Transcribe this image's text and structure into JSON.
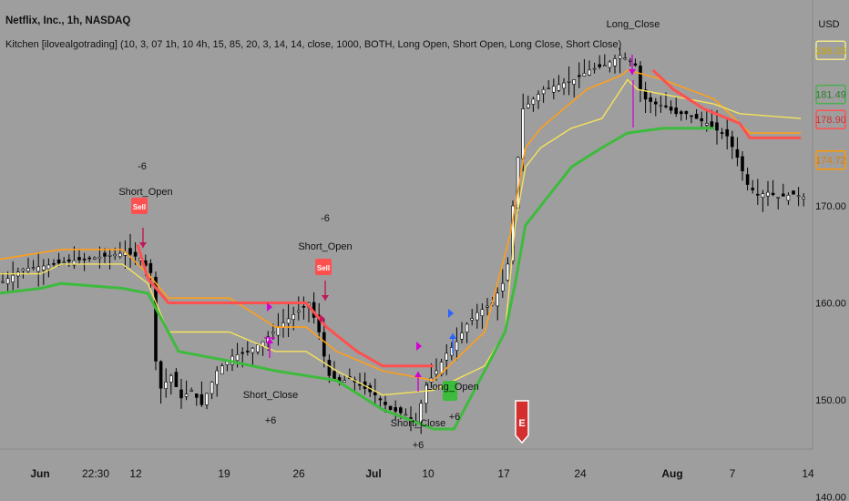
{
  "header": {
    "title": "Netflix, Inc., 1h, NASDAQ",
    "indicator": "Kitchen [ilovealgotrading] (10, 3, 07 1h, 10 4h, 15, 85, 20, 3, 14, 14, close, 1000, BOTH, Long Open, Short Open, Long Close, Short Close)"
  },
  "price_axis": {
    "currency": "USD",
    "ticks": [
      "170.00",
      "160.00",
      "150.00",
      "140.00"
    ],
    "badges": [
      {
        "value": "186.03",
        "color": "#f0e68c",
        "text_color": "#c9a800"
      },
      {
        "value": "181.49",
        "color": "#4caf50",
        "text_color": "#2e7d32"
      },
      {
        "value": "178.90",
        "color": "#ff5252",
        "text_color": "#d32f2f"
      },
      {
        "value": "174.72",
        "color": "#ff9800",
        "text_color": "#e07b00"
      }
    ]
  },
  "time_axis": {
    "ticks": [
      "Jun",
      "22:30",
      "12",
      "19",
      "26",
      "Jul",
      "10",
      "17",
      "24",
      "Aug",
      "7",
      "14"
    ],
    "bold_ticks": [
      "Jun",
      "Jul",
      "Aug"
    ]
  },
  "annotations": [
    {
      "label": "Short_Open",
      "qty": "-6",
      "type": "short_open"
    },
    {
      "label": "Short_Open",
      "qty": "-6",
      "type": "short_open"
    },
    {
      "label": "Short_Close",
      "qty": "+6",
      "type": "short_close"
    },
    {
      "label": "Short_Close",
      "qty": "+6",
      "type": "short_close"
    },
    {
      "label": "Long_Open",
      "qty": "+6",
      "type": "long_open"
    },
    {
      "label": "Long_Close",
      "qty": "",
      "type": "long_close"
    }
  ],
  "sell_badge_text": "Sell",
  "earnings_marker": "E",
  "colors": {
    "background": "#9e9e9e",
    "yellow": "#f5e35a",
    "orange": "#ff9f1a",
    "green": "#3dbb3d",
    "red": "#ff5050",
    "magenta": "#d400d4",
    "blue": "#2962ff",
    "candle": "#000000",
    "candle_up": "#ffffff"
  },
  "chart_data": {
    "type": "line",
    "title": "Netflix, Inc., 1h, NASDAQ",
    "ylabel": "USD",
    "ylim": [
      135,
      195
    ],
    "x_ticks": [
      "Jun",
      "22:30",
      "12",
      "19",
      "26",
      "Jul",
      "10",
      "17",
      "24",
      "Aug",
      "7",
      "14"
    ],
    "series": [
      {
        "name": "close",
        "points": [
          [
            0,
            162.2
          ],
          [
            4,
            163.5
          ],
          [
            8,
            163.8
          ],
          [
            12,
            164.2
          ],
          [
            16,
            164.5
          ],
          [
            20,
            164.8
          ],
          [
            24,
            165.2
          ],
          [
            27,
            164.6
          ],
          [
            29,
            163.1
          ],
          [
            29.5,
            159
          ],
          [
            30,
            154
          ],
          [
            30.5,
            150.5
          ],
          [
            31,
            151.2
          ],
          [
            33,
            152.5
          ],
          [
            35,
            150.2
          ],
          [
            37,
            151
          ],
          [
            39,
            149.5
          ],
          [
            42,
            153
          ],
          [
            45,
            154.5
          ],
          [
            48,
            155
          ],
          [
            51,
            156
          ],
          [
            54,
            157.5
          ],
          [
            57,
            158.8
          ],
          [
            60,
            160
          ],
          [
            62,
            157
          ],
          [
            63,
            154.5
          ],
          [
            64,
            152.5
          ],
          [
            66,
            151.8
          ],
          [
            68,
            152.2
          ],
          [
            70,
            151.5
          ],
          [
            73,
            150.5
          ],
          [
            76,
            149
          ],
          [
            79,
            148.5
          ],
          [
            81,
            147.8
          ],
          [
            83,
            151.5
          ],
          [
            85,
            153
          ],
          [
            87,
            154.8
          ],
          [
            89,
            156
          ],
          [
            91,
            157.8
          ],
          [
            93,
            159
          ],
          [
            96,
            160
          ],
          [
            98,
            162
          ],
          [
            99,
            164
          ],
          [
            100,
            170
          ],
          [
            101,
            175
          ],
          [
            102,
            180
          ],
          [
            104,
            181
          ],
          [
            106,
            182
          ],
          [
            109,
            182.5
          ],
          [
            112,
            183
          ],
          [
            115,
            184
          ],
          [
            118,
            184.5
          ],
          [
            121,
            185.5
          ],
          [
            123,
            185
          ],
          [
            124,
            184.5
          ],
          [
            125,
            182
          ],
          [
            126,
            181
          ],
          [
            128,
            180.5
          ],
          [
            130,
            180.2
          ],
          [
            132,
            179.5
          ],
          [
            134,
            179.5
          ],
          [
            136,
            179
          ],
          [
            138,
            178.5
          ],
          [
            140,
            177.8
          ],
          [
            142,
            177.2
          ],
          [
            144,
            175
          ],
          [
            146,
            172.2
          ],
          [
            148,
            171.1
          ],
          [
            150,
            171.4
          ],
          [
            152,
            170.9
          ],
          [
            155,
            171.2
          ],
          [
            157,
            170.9
          ]
        ]
      },
      {
        "name": "yellow",
        "points": [
          [
            0,
            163
          ],
          [
            8,
            163
          ],
          [
            12,
            164
          ],
          [
            24,
            164
          ],
          [
            29,
            162
          ],
          [
            33,
            157
          ],
          [
            45,
            157
          ],
          [
            54,
            155
          ],
          [
            60,
            155
          ],
          [
            66,
            153
          ],
          [
            75,
            150.5
          ],
          [
            85,
            151
          ],
          [
            95,
            153.5
          ],
          [
            99,
            157
          ],
          [
            101,
            168
          ],
          [
            103,
            174
          ],
          [
            106,
            176
          ],
          [
            112,
            178
          ],
          [
            118,
            179
          ],
          [
            123,
            183
          ],
          [
            125,
            182
          ],
          [
            130,
            181.5
          ],
          [
            140,
            180.5
          ],
          [
            145,
            179.5
          ],
          [
            157,
            179
          ]
        ]
      },
      {
        "name": "orange",
        "points": [
          [
            0,
            164.5
          ],
          [
            12,
            165.5
          ],
          [
            24,
            165.5
          ],
          [
            29,
            163
          ],
          [
            33,
            160.5
          ],
          [
            45,
            160.5
          ],
          [
            54,
            157.5
          ],
          [
            60,
            157.5
          ],
          [
            66,
            155
          ],
          [
            75,
            153
          ],
          [
            85,
            152
          ],
          [
            95,
            157
          ],
          [
            100,
            167
          ],
          [
            103,
            176
          ],
          [
            106,
            178
          ],
          [
            115,
            182
          ],
          [
            122,
            183.5
          ],
          [
            123,
            184
          ],
          [
            130,
            183
          ],
          [
            140,
            181
          ],
          [
            147,
            177.5
          ],
          [
            157,
            177.5
          ]
        ]
      },
      {
        "name": "green",
        "points": [
          [
            0,
            161
          ],
          [
            8,
            161.5
          ],
          [
            12,
            162
          ],
          [
            24,
            161.5
          ],
          [
            29,
            161
          ],
          [
            35,
            155
          ],
          [
            45,
            154
          ],
          [
            54,
            153
          ],
          [
            66,
            152
          ],
          [
            75,
            149
          ],
          [
            85,
            147
          ],
          [
            89,
            147
          ],
          [
            93,
            151
          ],
          [
            99,
            157
          ],
          [
            101,
            162
          ],
          [
            103,
            168
          ],
          [
            106,
            170
          ],
          [
            112,
            174
          ],
          [
            118,
            176
          ],
          [
            123,
            177.5
          ],
          [
            130,
            178
          ],
          [
            140,
            178
          ]
        ]
      },
      {
        "name": "red",
        "points": [
          [
            27,
            166
          ],
          [
            29,
            162.5
          ],
          [
            33,
            160
          ],
          [
            45,
            160
          ],
          [
            55,
            160
          ],
          [
            60,
            160
          ],
          [
            64,
            157.5
          ],
          [
            70,
            155
          ],
          [
            75,
            153.5
          ],
          [
            85,
            153.5
          ],
          [
            128,
            184
          ],
          [
            132,
            182
          ],
          [
            138,
            180
          ],
          [
            145,
            178.5
          ],
          [
            147,
            177
          ],
          [
            157,
            177
          ]
        ]
      }
    ]
  }
}
